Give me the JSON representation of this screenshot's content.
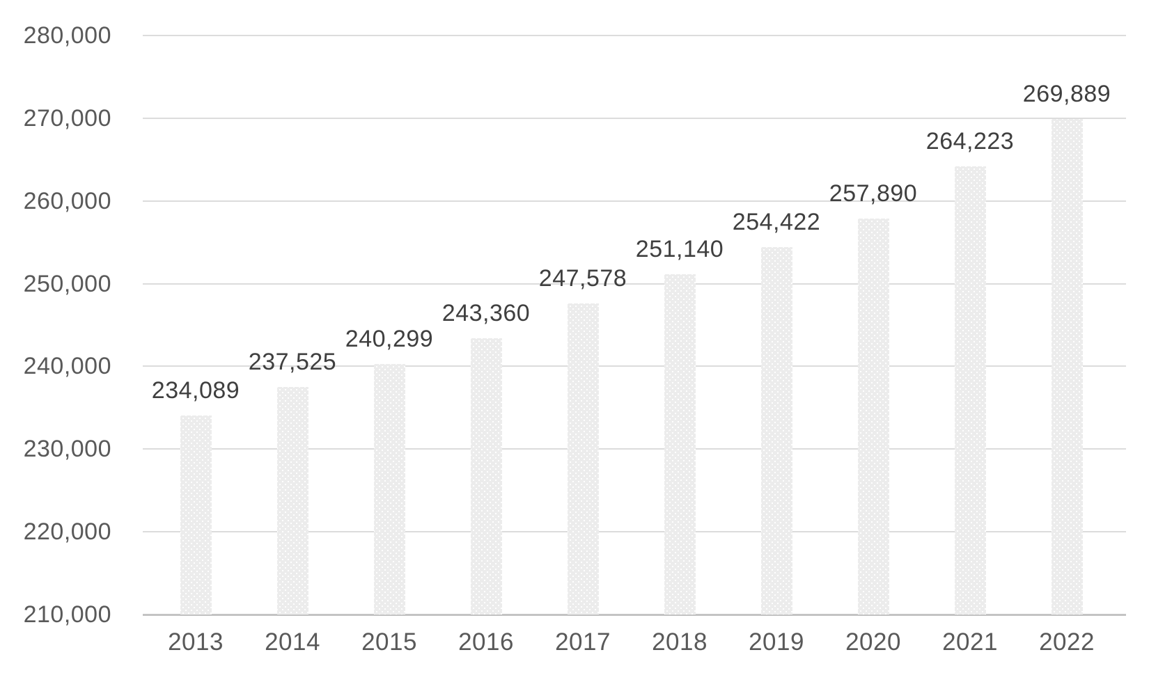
{
  "chart_data": {
    "type": "bar",
    "title": "",
    "xlabel": "",
    "ylabel": "",
    "categories": [
      "2013",
      "2014",
      "2015",
      "2016",
      "2017",
      "2018",
      "2019",
      "2020",
      "2021",
      "2022"
    ],
    "values": [
      234089,
      237525,
      240299,
      243360,
      247578,
      251140,
      254422,
      257890,
      264223,
      269889
    ],
    "data_labels": [
      "234,089",
      "237,525",
      "240,299",
      "243,360",
      "247,578",
      "251,140",
      "254,422",
      "257,890",
      "264,223",
      "269,889"
    ],
    "ylim": [
      210000,
      280000
    ],
    "yticks": [
      {
        "value": 210000,
        "label": "210,000"
      },
      {
        "value": 220000,
        "label": "220,000"
      },
      {
        "value": 230000,
        "label": "230,000"
      },
      {
        "value": 240000,
        "label": "240,000"
      },
      {
        "value": 250000,
        "label": "250,000"
      },
      {
        "value": 260000,
        "label": "260,000"
      },
      {
        "value": 270000,
        "label": "270,000"
      },
      {
        "value": 280000,
        "label": "280,000"
      }
    ],
    "grid": "horizontal",
    "legend": "none",
    "colors": {
      "bar_fill": "#ececec",
      "gridline": "#dcdcdc",
      "axis_line": "#c3c3c3",
      "tick_text": "#595959",
      "data_label_text": "#3f3f3f",
      "background": "#ffffff"
    }
  }
}
